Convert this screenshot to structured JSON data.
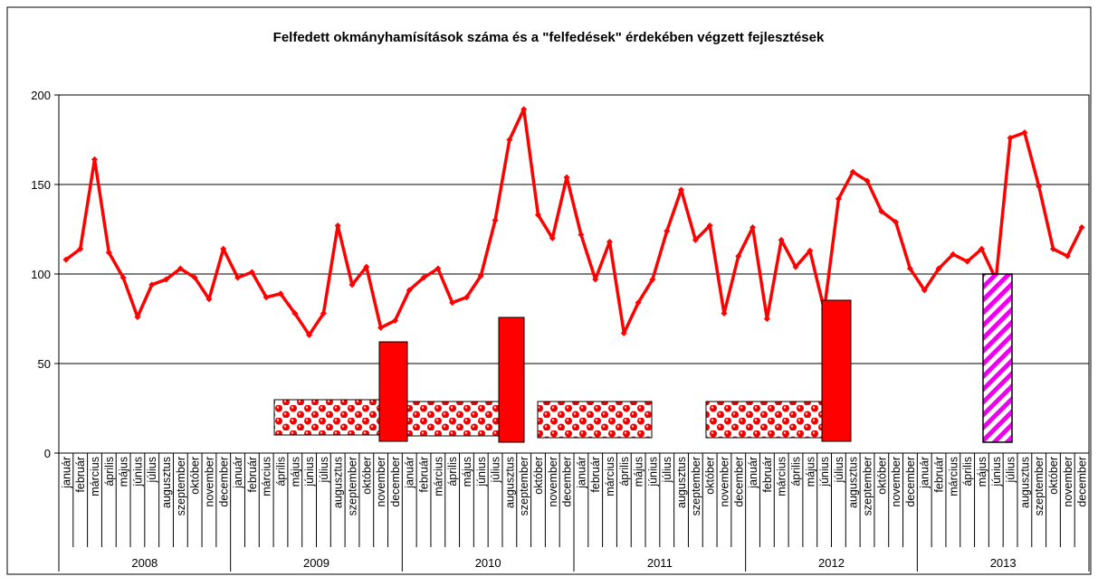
{
  "chart_data": {
    "type": "line",
    "title": "Felfedett okmányhamísítások száma és a \"felfedések\" érdekében végzett fejlesztések",
    "categories": [
      "január",
      "február",
      "március",
      "április",
      "május",
      "június",
      "július",
      "augusztus",
      "szeptember",
      "október",
      "november",
      "december",
      "január",
      "február",
      "március",
      "április",
      "május",
      "június",
      "július",
      "augusztus",
      "szeptember",
      "október",
      "november",
      "december",
      "január",
      "február",
      "március",
      "április",
      "május",
      "június",
      "július",
      "augusztus",
      "szeptember",
      "október",
      "november",
      "december",
      "január",
      "február",
      "március",
      "április",
      "május",
      "június",
      "július",
      "augusztus",
      "szeptember",
      "október",
      "november",
      "december",
      "január",
      "február",
      "március",
      "április",
      "május",
      "június",
      "július",
      "augusztus",
      "szeptember",
      "október",
      "november",
      "december",
      "január",
      "február",
      "március",
      "április",
      "május",
      "június",
      "július",
      "augusztus",
      "szeptember",
      "október",
      "november",
      "december"
    ],
    "years": [
      "2008",
      "2009",
      "2010",
      "2011",
      "2012",
      "2013"
    ],
    "series": [
      {
        "color": "#ff0000",
        "values": [
          108,
          114,
          164,
          112,
          98,
          76,
          94,
          97,
          103,
          98,
          86,
          114,
          98,
          101,
          87,
          89,
          78,
          66,
          78,
          127,
          94,
          104,
          70,
          74,
          91,
          98,
          103,
          84,
          87,
          99,
          130,
          175,
          192,
          133,
          120,
          154,
          122,
          97,
          118,
          67,
          84,
          97,
          124,
          147,
          119,
          127,
          78,
          110,
          126,
          75,
          119,
          104,
          113,
          80,
          142,
          157,
          152,
          135,
          129,
          103,
          91,
          103,
          111,
          107,
          114,
          97,
          176,
          179,
          149,
          114,
          110,
          126
        ]
      }
    ],
    "ylim": [
      0,
      200
    ],
    "yticks": [
      0,
      50,
      100,
      150,
      200
    ],
    "grid": true
  }
}
